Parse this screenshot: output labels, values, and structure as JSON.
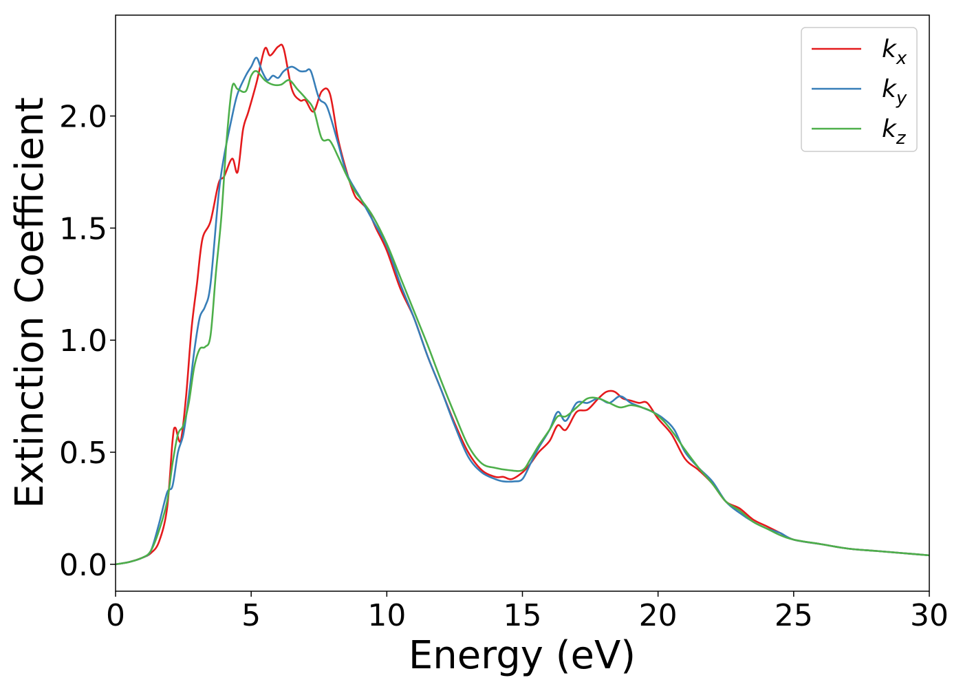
{
  "chart_data": {
    "type": "line",
    "title": "",
    "xlabel": "Energy (eV)",
    "ylabel": "Extinction Coefficient",
    "xlim": [
      0,
      30
    ],
    "ylim": [
      -0.12,
      2.45
    ],
    "xticks": [
      0,
      5,
      10,
      15,
      20,
      25,
      30
    ],
    "xtick_labels": [
      "0",
      "5",
      "10",
      "15",
      "20",
      "25",
      "30"
    ],
    "yticks": [
      0.0,
      0.5,
      1.0,
      1.5,
      2.0
    ],
    "ytick_labels": [
      "0.0",
      "0.5",
      "1.0",
      "1.5",
      "2.0"
    ],
    "grid": false,
    "legend_position": "top-right",
    "series": [
      {
        "name": "k_x",
        "label_base": "k",
        "label_sub": "x",
        "color": "#e41a1c",
        "x": [
          0,
          0.5,
          1,
          1.3,
          1.6,
          1.9,
          2.1,
          2.2,
          2.4,
          2.6,
          2.8,
          3.0,
          3.2,
          3.5,
          3.8,
          4.0,
          4.3,
          4.5,
          4.7,
          4.9,
          5.2,
          5.5,
          5.7,
          6.0,
          6.2,
          6.5,
          6.8,
          7.0,
          7.3,
          7.6,
          7.9,
          8.2,
          8.5,
          8.8,
          9.0,
          9.3,
          9.6,
          10.0,
          10.5,
          11.0,
          11.5,
          12.0,
          12.5,
          13.0,
          13.5,
          14.0,
          14.3,
          14.6,
          15.0,
          15.3,
          15.6,
          16.0,
          16.3,
          16.6,
          17.0,
          17.4,
          17.8,
          18.1,
          18.4,
          18.7,
          19.0,
          19.3,
          19.6,
          20.0,
          20.5,
          21.0,
          21.5,
          22.0,
          22.5,
          23.0,
          23.5,
          24.0,
          24.5,
          25.0,
          26.0,
          27.0,
          28.0,
          29.0,
          30.0
        ],
        "y": [
          0.0,
          0.01,
          0.03,
          0.05,
          0.1,
          0.25,
          0.55,
          0.61,
          0.55,
          0.75,
          1.05,
          1.25,
          1.45,
          1.53,
          1.7,
          1.73,
          1.81,
          1.75,
          1.94,
          2.02,
          2.15,
          2.3,
          2.27,
          2.31,
          2.3,
          2.12,
          2.07,
          2.07,
          2.02,
          2.11,
          2.1,
          1.9,
          1.76,
          1.65,
          1.62,
          1.58,
          1.5,
          1.4,
          1.23,
          1.1,
          0.93,
          0.78,
          0.63,
          0.5,
          0.42,
          0.39,
          0.39,
          0.38,
          0.41,
          0.45,
          0.5,
          0.55,
          0.62,
          0.6,
          0.68,
          0.69,
          0.74,
          0.77,
          0.77,
          0.74,
          0.73,
          0.72,
          0.72,
          0.65,
          0.58,
          0.47,
          0.42,
          0.36,
          0.28,
          0.25,
          0.2,
          0.17,
          0.14,
          0.11,
          0.09,
          0.07,
          0.06,
          0.05,
          0.04
        ]
      },
      {
        "name": "k_y",
        "label_base": "k",
        "label_sub": "y",
        "color": "#377eb8",
        "x": [
          0,
          0.5,
          1,
          1.3,
          1.6,
          1.9,
          2.1,
          2.3,
          2.5,
          2.7,
          2.9,
          3.1,
          3.3,
          3.5,
          3.8,
          4.0,
          4.3,
          4.5,
          4.8,
          5.0,
          5.2,
          5.4,
          5.6,
          5.8,
          6.0,
          6.2,
          6.5,
          6.8,
          7.0,
          7.2,
          7.5,
          7.8,
          8.2,
          8.5,
          8.8,
          9.0,
          9.5,
          10.0,
          10.5,
          11.0,
          11.5,
          12.0,
          12.5,
          13.0,
          13.5,
          14.0,
          14.3,
          14.7,
          15.0,
          15.3,
          15.6,
          16.0,
          16.3,
          16.6,
          17.0,
          17.4,
          17.8,
          18.2,
          18.6,
          19.0,
          19.4,
          19.8,
          20.2,
          20.6,
          21.0,
          21.5,
          22.0,
          22.5,
          23.0,
          23.5,
          24.0,
          24.5,
          25.0,
          26.0,
          27.0,
          28.0,
          29.0,
          30.0
        ],
        "y": [
          0.0,
          0.01,
          0.03,
          0.06,
          0.18,
          0.32,
          0.35,
          0.5,
          0.58,
          0.75,
          0.95,
          1.1,
          1.15,
          1.25,
          1.65,
          1.82,
          2.0,
          2.1,
          2.18,
          2.22,
          2.26,
          2.2,
          2.16,
          2.18,
          2.17,
          2.2,
          2.22,
          2.2,
          2.2,
          2.2,
          2.08,
          2.04,
          1.88,
          1.75,
          1.68,
          1.64,
          1.53,
          1.42,
          1.25,
          1.1,
          0.93,
          0.78,
          0.62,
          0.48,
          0.41,
          0.38,
          0.37,
          0.37,
          0.38,
          0.45,
          0.52,
          0.6,
          0.68,
          0.64,
          0.72,
          0.72,
          0.74,
          0.72,
          0.75,
          0.72,
          0.7,
          0.68,
          0.65,
          0.6,
          0.5,
          0.43,
          0.37,
          0.28,
          0.23,
          0.19,
          0.16,
          0.14,
          0.11,
          0.09,
          0.07,
          0.06,
          0.05,
          0.04
        ]
      },
      {
        "name": "k_z",
        "label_base": "k",
        "label_sub": "z",
        "color": "#4daf4a",
        "x": [
          0,
          0.5,
          1,
          1.3,
          1.6,
          1.9,
          2.1,
          2.3,
          2.5,
          2.7,
          2.9,
          3.1,
          3.3,
          3.5,
          3.7,
          3.9,
          4.1,
          4.3,
          4.5,
          4.8,
          5.0,
          5.2,
          5.5,
          5.8,
          6.1,
          6.4,
          6.7,
          7.0,
          7.3,
          7.6,
          7.9,
          8.2,
          8.5,
          8.8,
          9.1,
          9.5,
          10.0,
          10.5,
          11.0,
          11.5,
          12.0,
          12.5,
          13.0,
          13.5,
          14.0,
          14.5,
          15.0,
          15.3,
          15.6,
          16.0,
          16.3,
          16.6,
          17.0,
          17.4,
          17.8,
          18.2,
          18.6,
          19.0,
          19.4,
          19.8,
          20.2,
          20.6,
          21.0,
          21.5,
          22.0,
          22.5,
          23.0,
          23.5,
          24.0,
          24.5,
          25.0,
          26.0,
          27.0,
          28.0,
          29.0,
          30.0
        ],
        "y": [
          0.0,
          0.01,
          0.03,
          0.06,
          0.15,
          0.28,
          0.45,
          0.58,
          0.62,
          0.72,
          0.88,
          0.96,
          0.97,
          1.02,
          1.3,
          1.55,
          1.9,
          2.13,
          2.12,
          2.11,
          2.18,
          2.2,
          2.16,
          2.14,
          2.14,
          2.16,
          2.12,
          2.08,
          2.03,
          1.9,
          1.89,
          1.82,
          1.74,
          1.67,
          1.62,
          1.55,
          1.43,
          1.28,
          1.13,
          0.98,
          0.82,
          0.67,
          0.53,
          0.45,
          0.43,
          0.42,
          0.42,
          0.47,
          0.53,
          0.6,
          0.66,
          0.66,
          0.7,
          0.74,
          0.74,
          0.72,
          0.7,
          0.71,
          0.7,
          0.68,
          0.64,
          0.58,
          0.51,
          0.43,
          0.36,
          0.28,
          0.24,
          0.19,
          0.16,
          0.13,
          0.11,
          0.09,
          0.07,
          0.06,
          0.05,
          0.04
        ]
      }
    ]
  }
}
